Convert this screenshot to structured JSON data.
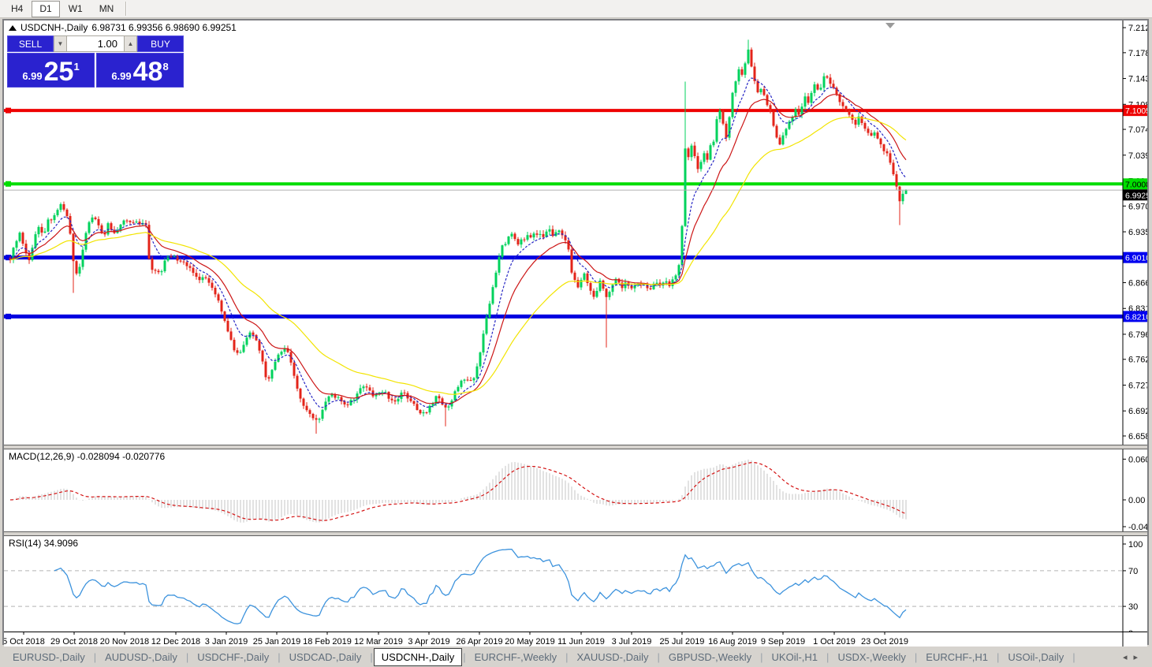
{
  "toolbar": {
    "timeframes": [
      {
        "label": "H4",
        "active": false
      },
      {
        "label": "D1",
        "active": true
      },
      {
        "label": "W1",
        "active": false
      },
      {
        "label": "MN",
        "active": false
      }
    ]
  },
  "window": {
    "title_symbol": "USDCNH-,Daily",
    "title_ohlc": "6.98731 6.99356 6.98690 6.99251",
    "trade_widget": {
      "sell_label": "SELL",
      "buy_label": "BUY",
      "volume": "1.00",
      "spin_down": "▼",
      "spin_up": "▲",
      "sell_quote": {
        "prefix": "6.99",
        "big": "25",
        "sup": "1"
      },
      "buy_quote": {
        "prefix": "6.99",
        "big": "48",
        "sup": "8"
      }
    }
  },
  "chart_data": [
    {
      "type": "candlestick",
      "title": "USDCNH-,Daily",
      "last_ohlc": {
        "open": 6.98731,
        "high": 6.99356,
        "low": 6.9869,
        "close": 6.99251
      },
      "current_price_label": "6.99251",
      "up_color": "#00d25c",
      "down_color": "#e3241a",
      "price_top": 7.2226,
      "price_bottom": 6.6471,
      "y_ticks": [
        "7.21290",
        "7.17890",
        "7.14390",
        "7.10890",
        "7.07490",
        "7.03990",
        "7.00490",
        "6.97090",
        "6.93590",
        "6.90090",
        "6.86690",
        "6.83190",
        "6.79690",
        "6.76290",
        "6.72790",
        "6.69290",
        "6.65890"
      ],
      "h_lines": [
        {
          "value": 7.10051,
          "label": "7.10051",
          "color": "#ee0000",
          "thickness": 4,
          "label_bg": "#ee0000",
          "label_fg": "#ffffff"
        },
        {
          "value": 7.00089,
          "label": "7.00089",
          "color": "#00dd00",
          "thickness": 4,
          "label_bg": "#00dd00",
          "label_fg": "#000000"
        },
        {
          "value": 6.901,
          "label": "6.90100",
          "color": "#0000e0",
          "thickness": 5,
          "label_bg": "#0000f0",
          "label_fg": "#ffffff"
        },
        {
          "value": 6.82103,
          "label": "6.82103",
          "color": "#0000e0",
          "thickness": 5,
          "label_bg": "#0000f0",
          "label_fg": "#ffffff"
        }
      ],
      "moving_averages": [
        {
          "name": "ma-fast",
          "period": 8,
          "color": "#2626c4",
          "dash": "3,2"
        },
        {
          "name": "ma-medium",
          "period": 16,
          "color": "#cc1616",
          "dash": ""
        },
        {
          "name": "ma-slow",
          "period": 42,
          "color": "#f2e400",
          "dash": ""
        }
      ],
      "x_labels": [
        {
          "label": "5 Oct 2018",
          "x": 25
        },
        {
          "label": "29 Oct 2018",
          "x": 89
        },
        {
          "label": "20 Nov 2018",
          "x": 153
        },
        {
          "label": "12 Dec 2018",
          "x": 218
        },
        {
          "label": "3 Jan 2019",
          "x": 282
        },
        {
          "label": "25 Jan 2019",
          "x": 346
        },
        {
          "label": "18 Feb 2019",
          "x": 410
        },
        {
          "label": "12 Mar 2019",
          "x": 475
        },
        {
          "label": "3 Apr 2019",
          "x": 539
        },
        {
          "label": "26 Apr 2019",
          "x": 603
        },
        {
          "label": "20 May 2019",
          "x": 667
        },
        {
          "label": "11 Jun 2019",
          "x": 732
        },
        {
          "label": "3 Jul 2019",
          "x": 796
        },
        {
          "label": "25 Jul 2019",
          "x": 860
        },
        {
          "label": "16 Aug 2019",
          "x": 924
        },
        {
          "label": "9 Sep 2019",
          "x": 988
        },
        {
          "label": "1 Oct 2019",
          "x": 1053
        },
        {
          "label": "23 Oct 2019",
          "x": 1117
        }
      ],
      "bars": {
        "count": 285,
        "x_start": 8,
        "x_end": 1144,
        "body_width": 3
      },
      "price_path": [
        [
          8,
          6.9
        ],
        [
          14,
          6.92
        ],
        [
          20,
          6.935
        ],
        [
          26,
          6.91
        ],
        [
          32,
          6.9
        ],
        [
          38,
          6.925
        ],
        [
          44,
          6.945
        ],
        [
          50,
          6.93
        ],
        [
          56,
          6.95
        ],
        [
          62,
          6.955
        ],
        [
          68,
          6.965
        ],
        [
          74,
          6.975
        ],
        [
          80,
          6.955
        ],
        [
          86,
          6.92
        ],
        [
          90,
          6.875
        ],
        [
          96,
          6.89
        ],
        [
          102,
          6.925
        ],
        [
          108,
          6.95
        ],
        [
          114,
          6.955
        ],
        [
          120,
          6.945
        ],
        [
          126,
          6.93
        ],
        [
          132,
          6.945
        ],
        [
          138,
          6.935
        ],
        [
          144,
          6.94
        ],
        [
          150,
          6.948
        ],
        [
          156,
          6.952
        ],
        [
          162,
          6.95
        ],
        [
          168,
          6.952
        ],
        [
          174,
          6.945
        ],
        [
          180,
          6.948
        ],
        [
          184,
          6.9
        ],
        [
          188,
          6.885
        ],
        [
          194,
          6.88
        ],
        [
          200,
          6.885
        ],
        [
          206,
          6.9
        ],
        [
          212,
          6.905
        ],
        [
          218,
          6.9
        ],
        [
          224,
          6.898
        ],
        [
          230,
          6.892
        ],
        [
          236,
          6.885
        ],
        [
          242,
          6.877
        ],
        [
          248,
          6.872
        ],
        [
          254,
          6.878
        ],
        [
          260,
          6.868
        ],
        [
          266,
          6.858
        ],
        [
          272,
          6.842
        ],
        [
          278,
          6.822
        ],
        [
          284,
          6.802
        ],
        [
          290,
          6.78
        ],
        [
          296,
          6.772
        ],
        [
          302,
          6.776
        ],
        [
          308,
          6.792
        ],
        [
          314,
          6.8
        ],
        [
          320,
          6.788
        ],
        [
          326,
          6.772
        ],
        [
          330,
          6.745
        ],
        [
          334,
          6.732
        ],
        [
          338,
          6.742
        ],
        [
          344,
          6.76
        ],
        [
          350,
          6.772
        ],
        [
          356,
          6.778
        ],
        [
          362,
          6.768
        ],
        [
          368,
          6.74
        ],
        [
          374,
          6.718
        ],
        [
          380,
          6.7
        ],
        [
          386,
          6.692
        ],
        [
          392,
          6.682
        ],
        [
          398,
          6.678
        ],
        [
          404,
          6.692
        ],
        [
          410,
          6.71
        ],
        [
          416,
          6.716
        ],
        [
          422,
          6.712
        ],
        [
          428,
          6.705
        ],
        [
          434,
          6.698
        ],
        [
          440,
          6.705
        ],
        [
          446,
          6.712
        ],
        [
          452,
          6.722
        ],
        [
          458,
          6.73
        ],
        [
          464,
          6.722
        ],
        [
          470,
          6.712
        ],
        [
          476,
          6.716
        ],
        [
          482,
          6.72
        ],
        [
          488,
          6.712
        ],
        [
          494,
          6.706
        ],
        [
          500,
          6.712
        ],
        [
          506,
          6.718
        ],
        [
          512,
          6.712
        ],
        [
          518,
          6.705
        ],
        [
          524,
          6.696
        ],
        [
          530,
          6.688
        ],
        [
          536,
          6.692
        ],
        [
          542,
          6.7
        ],
        [
          548,
          6.712
        ],
        [
          554,
          6.706
        ],
        [
          560,
          6.695
        ],
        [
          566,
          6.7
        ],
        [
          572,
          6.718
        ],
        [
          578,
          6.73
        ],
        [
          584,
          6.738
        ],
        [
          590,
          6.732
        ],
        [
          596,
          6.74
        ],
        [
          600,
          6.752
        ],
        [
          604,
          6.77
        ],
        [
          608,
          6.8
        ],
        [
          612,
          6.822
        ],
        [
          616,
          6.84
        ],
        [
          620,
          6.86
        ],
        [
          624,
          6.88
        ],
        [
          628,
          6.9
        ],
        [
          632,
          6.915
        ],
        [
          636,
          6.92
        ],
        [
          640,
          6.928
        ],
        [
          644,
          6.935
        ],
        [
          648,
          6.928
        ],
        [
          652,
          6.92
        ],
        [
          656,
          6.928
        ],
        [
          660,
          6.925
        ],
        [
          664,
          6.93
        ],
        [
          668,
          6.928
        ],
        [
          672,
          6.932
        ],
        [
          676,
          6.93
        ],
        [
          680,
          6.934
        ],
        [
          684,
          6.93
        ],
        [
          688,
          6.935
        ],
        [
          692,
          6.938
        ],
        [
          696,
          6.932
        ],
        [
          700,
          6.938
        ],
        [
          704,
          6.935
        ],
        [
          708,
          6.93
        ],
        [
          712,
          6.925
        ],
        [
          716,
          6.91
        ],
        [
          720,
          6.88
        ],
        [
          724,
          6.868
        ],
        [
          728,
          6.862
        ],
        [
          732,
          6.872
        ],
        [
          736,
          6.88
        ],
        [
          740,
          6.868
        ],
        [
          744,
          6.856
        ],
        [
          748,
          6.848
        ],
        [
          752,
          6.855
        ],
        [
          756,
          6.868
        ],
        [
          760,
          6.858
        ],
        [
          764,
          6.845
        ],
        [
          768,
          6.855
        ],
        [
          772,
          6.865
        ],
        [
          776,
          6.87
        ],
        [
          780,
          6.865
        ],
        [
          784,
          6.862
        ],
        [
          788,
          6.865
        ],
        [
          792,
          6.862
        ],
        [
          796,
          6.858
        ],
        [
          800,
          6.862
        ],
        [
          804,
          6.866
        ],
        [
          808,
          6.862
        ],
        [
          812,
          6.866
        ],
        [
          816,
          6.862
        ],
        [
          820,
          6.86
        ],
        [
          824,
          6.864
        ],
        [
          828,
          6.868
        ],
        [
          832,
          6.862
        ],
        [
          836,
          6.866
        ],
        [
          840,
          6.87
        ],
        [
          844,
          6.865
        ],
        [
          848,
          6.87
        ],
        [
          852,
          6.878
        ],
        [
          856,
          6.89
        ],
        [
          860,
          6.945
        ],
        [
          864,
          7.05
        ],
        [
          868,
          7.035
        ],
        [
          872,
          7.055
        ],
        [
          876,
          7.04
        ],
        [
          880,
          7.022
        ],
        [
          884,
          7.03
        ],
        [
          888,
          7.042
        ],
        [
          892,
          7.035
        ],
        [
          896,
          7.052
        ],
        [
          900,
          7.06
        ],
        [
          904,
          7.09
        ],
        [
          908,
          7.1
        ],
        [
          912,
          7.08
        ],
        [
          916,
          7.062
        ],
        [
          920,
          7.09
        ],
        [
          924,
          7.125
        ],
        [
          928,
          7.14
        ],
        [
          932,
          7.155
        ],
        [
          936,
          7.148
        ],
        [
          940,
          7.162
        ],
        [
          944,
          7.185
        ],
        [
          948,
          7.16
        ],
        [
          952,
          7.14
        ],
        [
          956,
          7.125
        ],
        [
          960,
          7.132
        ],
        [
          964,
          7.122
        ],
        [
          968,
          7.11
        ],
        [
          972,
          7.098
        ],
        [
          976,
          7.078
        ],
        [
          980,
          7.062
        ],
        [
          984,
          7.055
        ],
        [
          988,
          7.065
        ],
        [
          992,
          7.078
        ],
        [
          996,
          7.088
        ],
        [
          1000,
          7.094
        ],
        [
          1004,
          7.1
        ],
        [
          1008,
          7.095
        ],
        [
          1012,
          7.108
        ],
        [
          1016,
          7.118
        ],
        [
          1020,
          7.112
        ],
        [
          1024,
          7.126
        ],
        [
          1028,
          7.138
        ],
        [
          1032,
          7.128
        ],
        [
          1036,
          7.134
        ],
        [
          1040,
          7.148
        ],
        [
          1044,
          7.143
        ],
        [
          1048,
          7.138
        ],
        [
          1052,
          7.133
        ],
        [
          1056,
          7.12
        ],
        [
          1060,
          7.114
        ],
        [
          1064,
          7.108
        ],
        [
          1068,
          7.1
        ],
        [
          1072,
          7.094
        ],
        [
          1076,
          7.086
        ],
        [
          1080,
          7.08
        ],
        [
          1084,
          7.09
        ],
        [
          1088,
          7.084
        ],
        [
          1092,
          7.078
        ],
        [
          1096,
          7.07
        ],
        [
          1100,
          7.064
        ],
        [
          1104,
          7.07
        ],
        [
          1108,
          7.06
        ],
        [
          1112,
          7.054
        ],
        [
          1116,
          7.048
        ],
        [
          1120,
          7.04
        ],
        [
          1124,
          7.028
        ],
        [
          1128,
          7.014
        ],
        [
          1132,
          6.998
        ],
        [
          1136,
          6.978
        ],
        [
          1140,
          6.988
        ],
        [
          1144,
          6.9925
        ]
      ],
      "wick_boosts": [
        {
          "x": 90,
          "low": 6.853
        },
        {
          "x": 398,
          "low": 6.662
        },
        {
          "x": 560,
          "low": 6.672
        },
        {
          "x": 764,
          "low": 6.779
        },
        {
          "x": 866,
          "high": 7.1397
        },
        {
          "x": 944,
          "high": 7.1965
        },
        {
          "x": 1136,
          "low": 6.945
        }
      ]
    },
    {
      "type": "bar",
      "title": "MACD(12,26,9) -0.028094 -0.020776",
      "params": [
        12,
        26,
        9
      ],
      "values_displayed": [
        -0.028094,
        -0.020776
      ],
      "y_ticks": [
        "0.060687",
        "0.00",
        "-0.040437"
      ],
      "y_tick_values": [
        0.060687,
        0,
        -0.040437
      ],
      "histogram_color": "#c4c4c4",
      "signal_color": "#d41414",
      "derived_from": "main candles (EMA12 - EMA26, signal 9)"
    },
    {
      "type": "line",
      "title": "RSI(14) 34.9096",
      "period": 14,
      "last_value": 34.9096,
      "levels": [
        70,
        30
      ],
      "y_ticks": [
        "100",
        "70",
        "30",
        "0"
      ],
      "y_tick_values": [
        100,
        70,
        30,
        0
      ],
      "line_color": "#3d93dd",
      "level_color": "#b4b4b4"
    }
  ],
  "tabs": {
    "items": [
      {
        "label": "EURUSD-,Daily",
        "active": false
      },
      {
        "label": "AUDUSD-,Daily",
        "active": false
      },
      {
        "label": "USDCHF-,Daily",
        "active": false
      },
      {
        "label": "USDCAD-,Daily",
        "active": false
      },
      {
        "label": "USDCNH-,Daily",
        "active": true
      },
      {
        "label": "EURCHF-,Weekly",
        "active": false
      },
      {
        "label": "XAUUSD-,Daily",
        "active": false
      },
      {
        "label": "GBPUSD-,Weekly",
        "active": false
      },
      {
        "label": "UKOil-,H1",
        "active": false
      },
      {
        "label": "USDX-,Weekly",
        "active": false
      },
      {
        "label": "EURCHF-,H1",
        "active": false
      },
      {
        "label": "USOil-,Daily",
        "active": false
      }
    ],
    "nav_left": "◂",
    "nav_right": "▸"
  }
}
